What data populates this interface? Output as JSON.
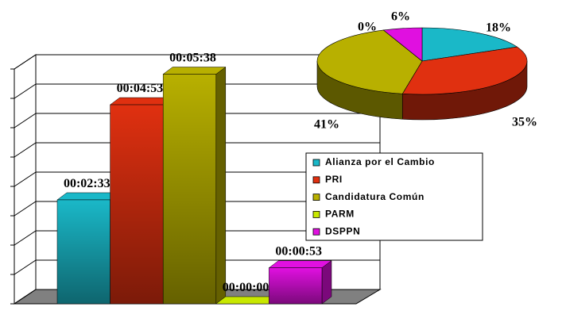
{
  "chart_data": [
    {
      "type": "bar",
      "categories": [
        "Alianza por el Cambio",
        "PRI",
        "Candidatura Común",
        "PARM",
        "DSPPN"
      ],
      "values": [
        153,
        293,
        338,
        0,
        53
      ],
      "value_labels": [
        "00:02:33",
        "00:04:53",
        "00:05:38",
        "00:00:00",
        "00:00:53"
      ],
      "colors": [
        "#1ab8c8",
        "#e03010",
        "#b8b000",
        "#c8e800",
        "#e010e0"
      ],
      "ylim": [
        0,
        345.6
      ],
      "yticks": [
        0,
        43.2,
        86.4,
        129.6,
        172.8,
        216,
        259.2,
        302.4,
        345.6
      ],
      "grid": true
    },
    {
      "type": "pie",
      "values": [
        18,
        35,
        41,
        0,
        6
      ],
      "value_labels": [
        "18%",
        "35%",
        "41%",
        "0%",
        "6%"
      ],
      "colors": [
        "#1ab8c8",
        "#e03010",
        "#b8b000",
        "#c8e800",
        "#e010e0"
      ]
    }
  ]
}
